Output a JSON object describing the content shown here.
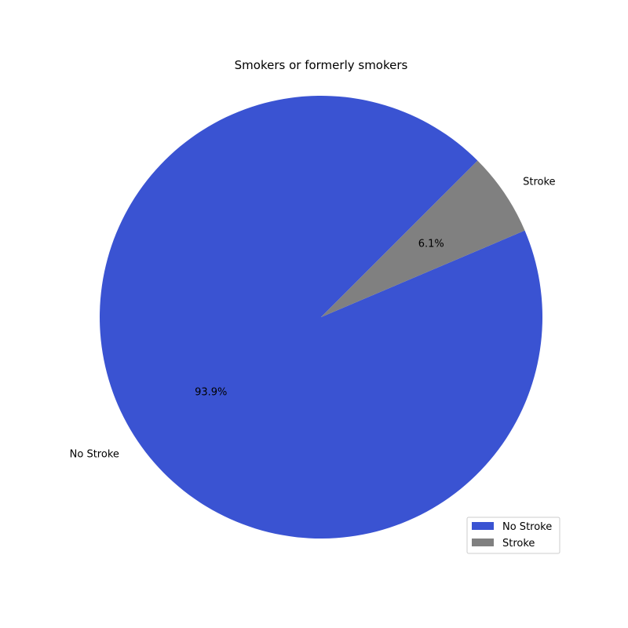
{
  "chart_data": {
    "type": "pie",
    "title": "Smokers or formerly smokers",
    "categories": [
      "No Stroke",
      "Stroke"
    ],
    "values": [
      93.9,
      6.1
    ],
    "value_labels": [
      "93.9%",
      "6.1%"
    ],
    "colors": [
      "#3a53d2",
      "#808080"
    ],
    "start_angle_deg": 45,
    "direction": "counterclockwise",
    "legend": {
      "placement": "lower-right",
      "entries": [
        "No Stroke",
        "Stroke"
      ]
    }
  }
}
